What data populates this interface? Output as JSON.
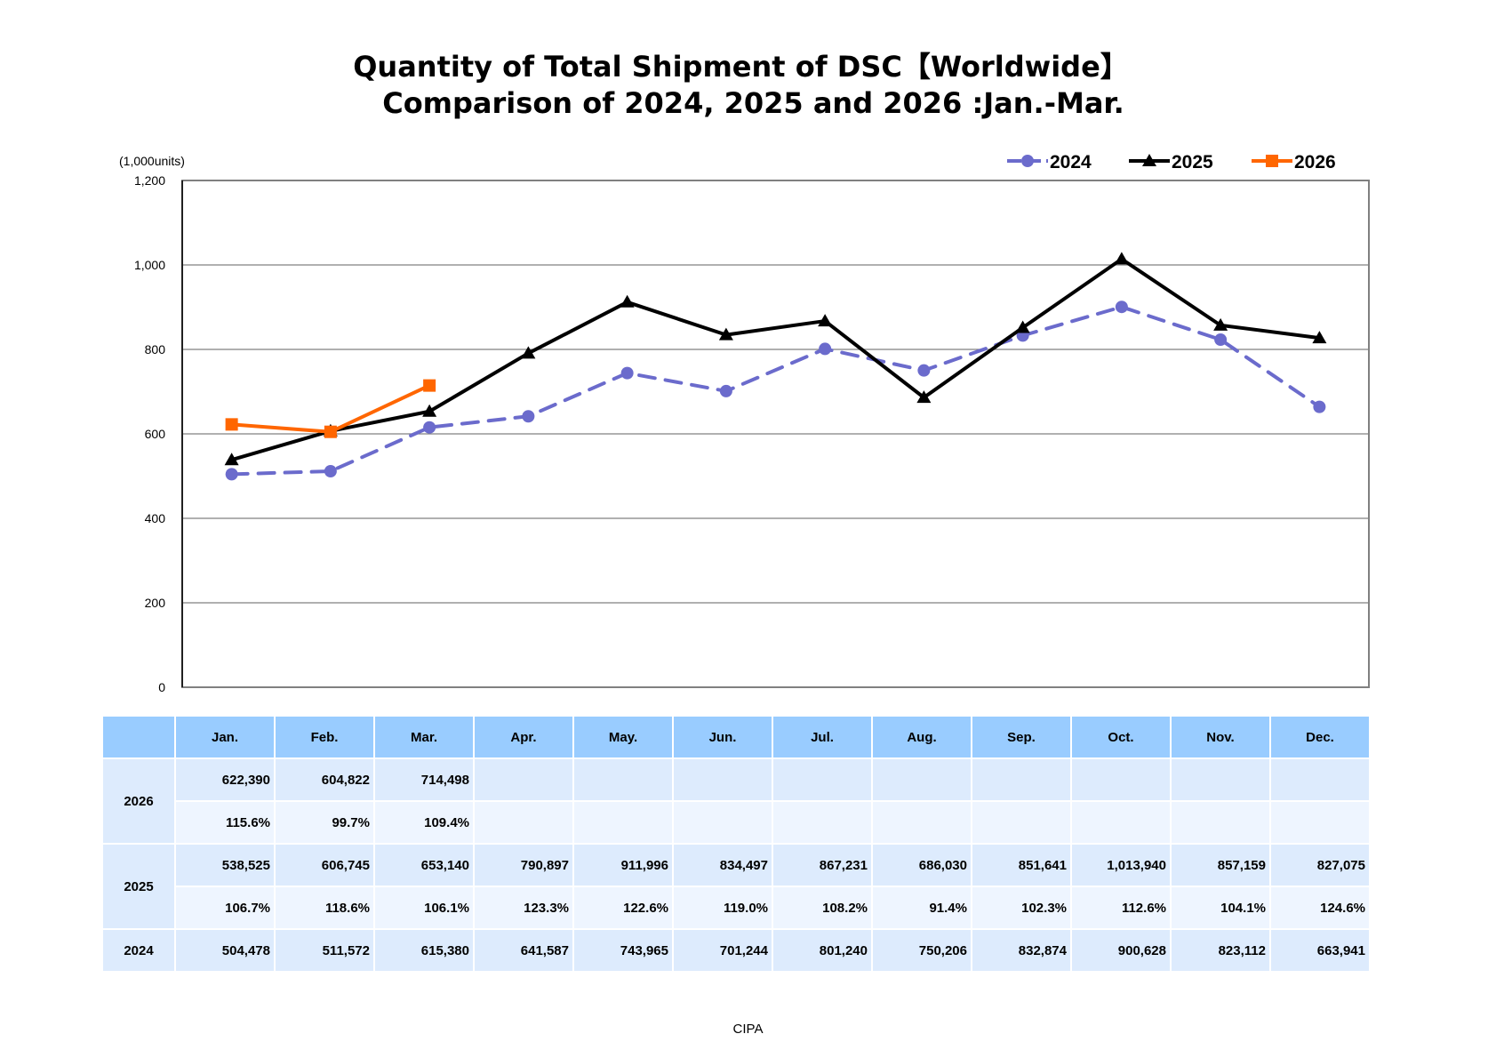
{
  "chart_data": {
    "type": "line",
    "title": "Quantity of Total Shipment of DSC【Worldwide】",
    "subtitle": "Comparison of 2024, 2025 and 2026 :Jan.-Mar.",
    "ylabel": "(1,000units)",
    "xlabel": "",
    "ylim": [
      0,
      1200
    ],
    "yticks": [
      0,
      200,
      400,
      600,
      800,
      1000,
      1200
    ],
    "ytick_labels": [
      "0",
      "200",
      "400",
      "600",
      "800",
      "1,000",
      "1,200"
    ],
    "grid": true,
    "legend_position": "top-right",
    "categories": [
      "Jan.",
      "Feb.",
      "Mar.",
      "Apr.",
      "May.",
      "Jun.",
      "Jul.",
      "Aug.",
      "Sep.",
      "Oct.",
      "Nov.",
      "Dec."
    ],
    "series": [
      {
        "name": "2024",
        "color": "#6b6bcc",
        "style": "dashed",
        "marker": "circle",
        "values": [
          504.478,
          511.572,
          615.38,
          641.587,
          743.965,
          701.244,
          801.24,
          750.206,
          832.874,
          900.628,
          823.112,
          663.941
        ]
      },
      {
        "name": "2025",
        "color": "#000000",
        "style": "solid",
        "marker": "triangle",
        "values": [
          538.525,
          606.745,
          653.14,
          790.897,
          911.996,
          834.497,
          867.231,
          686.03,
          851.641,
          1013.94,
          857.159,
          827.075
        ]
      },
      {
        "name": "2026",
        "color": "#ff6600",
        "style": "solid",
        "marker": "square",
        "values": [
          622.39,
          604.822,
          714.498
        ]
      }
    ]
  },
  "table": {
    "headers": [
      "",
      "Jan.",
      "Feb.",
      "Mar.",
      "Apr.",
      "May.",
      "Jun.",
      "Jul.",
      "Aug.",
      "Sep.",
      "Oct.",
      "Nov.",
      "Dec."
    ],
    "rows": [
      {
        "year": "2026",
        "values": [
          "622,390",
          "604,822",
          "714,498",
          "",
          "",
          "",
          "",
          "",
          "",
          "",
          "",
          ""
        ],
        "ratios": [
          "115.6%",
          "99.7%",
          "109.4%",
          "",
          "",
          "",
          "",
          "",
          "",
          "",
          "",
          ""
        ]
      },
      {
        "year": "2025",
        "values": [
          "538,525",
          "606,745",
          "653,140",
          "790,897",
          "911,996",
          "834,497",
          "867,231",
          "686,030",
          "851,641",
          "1,013,940",
          "857,159",
          "827,075"
        ],
        "ratios": [
          "106.7%",
          "118.6%",
          "106.1%",
          "123.3%",
          "122.6%",
          "119.0%",
          "108.2%",
          "91.4%",
          "102.3%",
          "112.6%",
          "104.1%",
          "124.6%"
        ]
      },
      {
        "year": "2024",
        "values": [
          "504,478",
          "511,572",
          "615,380",
          "641,587",
          "743,965",
          "701,244",
          "801,240",
          "750,206",
          "832,874",
          "900,628",
          "823,112",
          "663,941"
        ]
      }
    ]
  },
  "footer": "CIPA"
}
